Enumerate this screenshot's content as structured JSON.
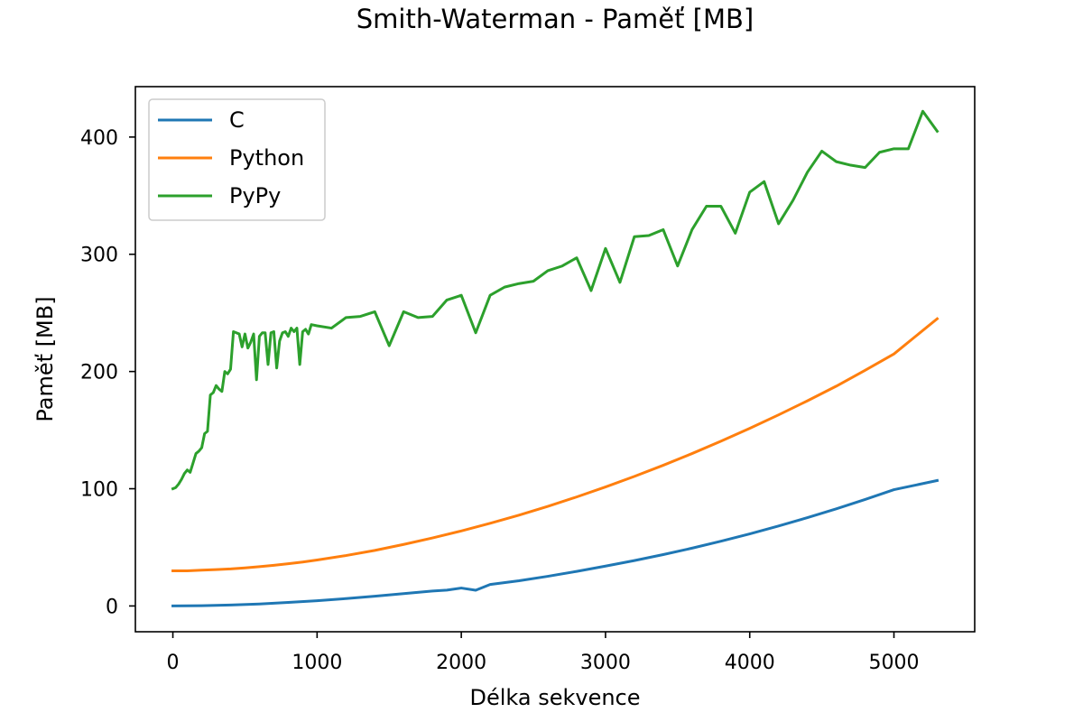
{
  "chart_data": {
    "type": "line",
    "title": "Smith-Waterman - Paměť [MB]",
    "xlabel": "Délka sekvence",
    "ylabel": "Paměť [MB]",
    "xlim": [
      -260,
      5560
    ],
    "ylim": [
      -22,
      443
    ],
    "xticks": [
      0,
      1000,
      2000,
      3000,
      4000,
      5000
    ],
    "yticks": [
      0,
      100,
      200,
      300,
      400
    ],
    "grid": false,
    "legend_position": "top-left",
    "series": [
      {
        "name": "C",
        "color": "#1f77b4",
        "points": [
          [
            0,
            0
          ],
          [
            200,
            0.2
          ],
          [
            400,
            0.8
          ],
          [
            600,
            1.7
          ],
          [
            800,
            3
          ],
          [
            1000,
            4.5
          ],
          [
            1200,
            6.3
          ],
          [
            1400,
            8.3
          ],
          [
            1600,
            10.5
          ],
          [
            1800,
            12.7
          ],
          [
            1900,
            13.5
          ],
          [
            2000,
            15.3
          ],
          [
            2100,
            13.4
          ],
          [
            2200,
            18.3
          ],
          [
            2400,
            21.5
          ],
          [
            2600,
            25.3
          ],
          [
            2800,
            29.5
          ],
          [
            3000,
            34
          ],
          [
            3200,
            38.7
          ],
          [
            3400,
            43.8
          ],
          [
            3600,
            49.3
          ],
          [
            3800,
            55.2
          ],
          [
            4000,
            61.5
          ],
          [
            4200,
            68.2
          ],
          [
            4400,
            75.3
          ],
          [
            4600,
            82.8
          ],
          [
            4800,
            90.8
          ],
          [
            5000,
            99.2
          ],
          [
            5300,
            107
          ]
        ]
      },
      {
        "name": "Python",
        "color": "#ff7f0e",
        "points": [
          [
            0,
            30
          ],
          [
            100,
            30
          ],
          [
            200,
            30.5
          ],
          [
            300,
            31
          ],
          [
            400,
            31.6
          ],
          [
            500,
            32.5
          ],
          [
            600,
            33.5
          ],
          [
            700,
            34.7
          ],
          [
            800,
            36
          ],
          [
            900,
            37.5
          ],
          [
            1000,
            39.2
          ],
          [
            1200,
            43
          ],
          [
            1400,
            47.4
          ],
          [
            1600,
            52.5
          ],
          [
            1800,
            58
          ],
          [
            2000,
            64
          ],
          [
            2200,
            70.5
          ],
          [
            2400,
            77.5
          ],
          [
            2600,
            85
          ],
          [
            2800,
            93
          ],
          [
            3000,
            101.5
          ],
          [
            3200,
            110.5
          ],
          [
            3400,
            120
          ],
          [
            3600,
            130
          ],
          [
            3800,
            140.5
          ],
          [
            4000,
            151.5
          ],
          [
            4200,
            163
          ],
          [
            4400,
            175
          ],
          [
            4600,
            187.5
          ],
          [
            4800,
            201
          ],
          [
            5000,
            215
          ],
          [
            5300,
            245
          ]
        ]
      },
      {
        "name": "PyPy",
        "color": "#2ca02c",
        "points": [
          [
            0,
            100
          ],
          [
            20,
            101
          ],
          [
            40,
            104
          ],
          [
            60,
            108
          ],
          [
            80,
            113
          ],
          [
            100,
            116
          ],
          [
            120,
            114
          ],
          [
            140,
            122
          ],
          [
            160,
            130
          ],
          [
            180,
            132
          ],
          [
            200,
            135
          ],
          [
            220,
            147
          ],
          [
            240,
            149
          ],
          [
            260,
            180
          ],
          [
            280,
            182
          ],
          [
            300,
            188
          ],
          [
            320,
            185
          ],
          [
            340,
            183
          ],
          [
            360,
            200
          ],
          [
            380,
            198
          ],
          [
            400,
            202
          ],
          [
            420,
            234
          ],
          [
            440,
            233
          ],
          [
            460,
            232
          ],
          [
            480,
            221
          ],
          [
            500,
            232
          ],
          [
            520,
            220
          ],
          [
            540,
            225
          ],
          [
            560,
            232
          ],
          [
            580,
            193
          ],
          [
            600,
            230
          ],
          [
            620,
            233
          ],
          [
            640,
            233
          ],
          [
            660,
            206
          ],
          [
            680,
            233
          ],
          [
            700,
            234
          ],
          [
            720,
            203
          ],
          [
            740,
            226
          ],
          [
            760,
            233
          ],
          [
            780,
            234
          ],
          [
            800,
            230
          ],
          [
            820,
            237
          ],
          [
            840,
            234
          ],
          [
            860,
            237
          ],
          [
            880,
            206
          ],
          [
            900,
            234
          ],
          [
            920,
            236
          ],
          [
            940,
            232
          ],
          [
            960,
            240
          ],
          [
            1000,
            239
          ],
          [
            1100,
            237
          ],
          [
            1200,
            246
          ],
          [
            1300,
            247
          ],
          [
            1400,
            251
          ],
          [
            1500,
            222
          ],
          [
            1600,
            251
          ],
          [
            1700,
            246
          ],
          [
            1800,
            247
          ],
          [
            1900,
            261
          ],
          [
            2000,
            265
          ],
          [
            2100,
            233
          ],
          [
            2200,
            265
          ],
          [
            2300,
            272
          ],
          [
            2400,
            275
          ],
          [
            2500,
            277
          ],
          [
            2600,
            286
          ],
          [
            2700,
            290
          ],
          [
            2800,
            297
          ],
          [
            2900,
            269
          ],
          [
            3000,
            305
          ],
          [
            3100,
            276
          ],
          [
            3200,
            315
          ],
          [
            3300,
            316
          ],
          [
            3400,
            321
          ],
          [
            3500,
            290
          ],
          [
            3600,
            321
          ],
          [
            3700,
            341
          ],
          [
            3800,
            341
          ],
          [
            3900,
            318
          ],
          [
            4000,
            353
          ],
          [
            4100,
            362
          ],
          [
            4200,
            326
          ],
          [
            4300,
            346
          ],
          [
            4400,
            370
          ],
          [
            4500,
            388
          ],
          [
            4600,
            379
          ],
          [
            4700,
            376
          ],
          [
            4800,
            374
          ],
          [
            4900,
            387
          ],
          [
            5000,
            390
          ],
          [
            5100,
            390
          ],
          [
            5200,
            422
          ],
          [
            5300,
            405
          ]
        ]
      }
    ]
  }
}
